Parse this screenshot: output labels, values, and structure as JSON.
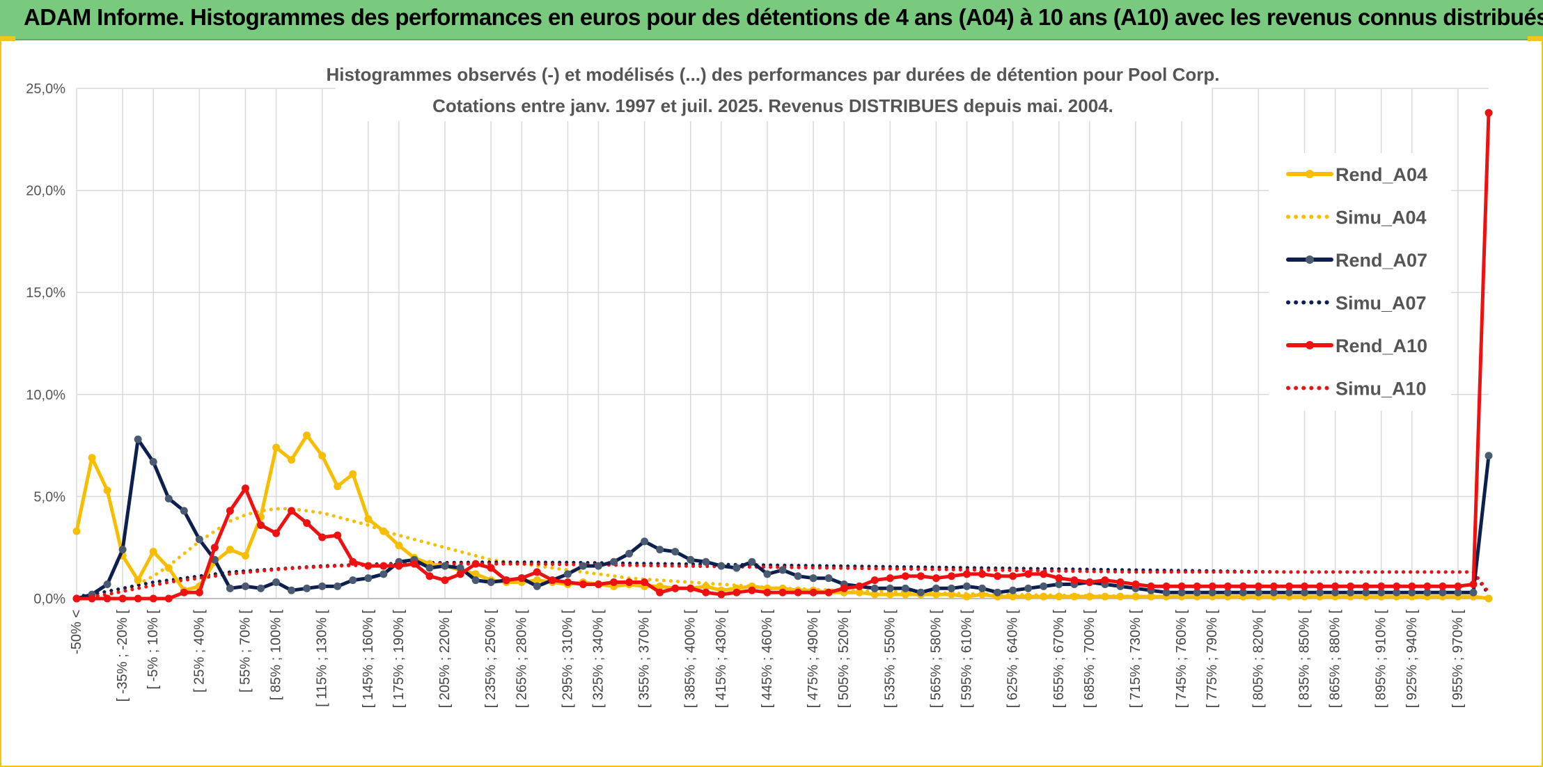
{
  "banner": {
    "title": "ADAM Informe. Histogrammes des performances en euros pour des détentions de 4 ans (A04) à 10 ans (A10) avec les revenus connus distribués"
  },
  "colors": {
    "banner_bg": "#79c97e",
    "accent": "#f0c419",
    "A04": "#f7be00",
    "A07": "#0d1f4f",
    "A07_marker": "#4a5a70",
    "A10": "#ee1111",
    "grid": "#d9d9d9"
  },
  "chart_data": {
    "type": "line",
    "title_lines": [
      "Histogrammes observés (-) et modélisés (...) des performances par durées de détention pour Pool Corp.",
      "Cotations entre janv. 1997 et juil. 2025. Revenus DISTRIBUES depuis mai. 2004."
    ],
    "y_ticks": [
      "0,0%",
      "5,0%",
      "10,0%",
      "15,0%",
      "20,0%",
      "25,0%"
    ],
    "ylim": [
      0,
      25
    ],
    "grid": true,
    "legend_position": "right",
    "x_labels": [
      "-50% <",
      "[ -35% ; -20% [",
      "[ -5% ; 10% [",
      "[ 25% ; 40% [",
      "[ 55% ; 70% [",
      "[ 85% ; 100% [",
      "[ 115% ; 130% [",
      "[ 145% ; 160% [",
      "[ 175% ; 190% [",
      "[ 205% ; 220% [",
      "[ 235% ; 250% [",
      "[ 265% ; 280% [",
      "[ 295% ; 310% [",
      "[ 325% ; 340% [",
      "[ 355% ; 370% [",
      "[ 385% ; 400% [",
      "[ 415% ; 430% [",
      "[ 445% ; 460% [",
      "[ 475% ; 490% [",
      "[ 505% ; 520% [",
      "[ 535% ; 550% [",
      "[ 565% ; 580% [",
      "[ 595% ; 610% [",
      "[ 625% ; 640% [",
      "[ 655% ; 670% [",
      "[ 685% ; 700% [",
      "[ 715% ; 730% [",
      "[ 745% ; 760% [",
      "[ 775% ; 790% [",
      "[ 805% ; 820% [",
      "[ 835% ; 850% [",
      "[ 865% ; 880% [",
      "[ 895% ; 910% [",
      "[ 925% ; 940% [",
      "[ 955% ; 970% ["
    ],
    "series": [
      {
        "name": "Rend_A04",
        "style": "solid",
        "color": "#f7be00",
        "markers": true,
        "values": [
          3.3,
          6.9,
          5.3,
          2.1,
          0.9,
          2.3,
          1.5,
          0.4,
          0.6,
          1.8,
          2.4,
          2.1,
          4.0,
          7.4,
          6.8,
          8.0,
          7.0,
          5.5,
          6.1,
          3.9,
          3.3,
          2.6,
          2.0,
          1.7,
          1.6,
          1.4,
          1.2,
          0.9,
          0.8,
          0.8,
          0.9,
          0.8,
          0.7,
          0.8,
          0.7,
          0.6,
          0.7,
          0.6,
          0.6,
          0.5,
          0.5,
          0.6,
          0.4,
          0.5,
          0.6,
          0.5,
          0.5,
          0.4,
          0.4,
          0.3,
          0.3,
          0.3,
          0.2,
          0.2,
          0.2,
          0.2,
          0.2,
          0.2,
          0.1,
          0.2,
          0.1,
          0.1,
          0.1,
          0.1,
          0.1,
          0.1,
          0.1,
          0.1,
          0.1,
          0.1,
          0.1,
          0.1,
          0.1,
          0.1,
          0.1,
          0.1,
          0.1,
          0.1,
          0.1,
          0.1,
          0.1,
          0.1,
          0.1,
          0.1,
          0.1,
          0.1,
          0.1,
          0.1,
          0.1,
          0.1,
          0.1,
          0.1,
          0.0
        ]
      },
      {
        "name": "Simu_A04",
        "style": "dotted",
        "color": "#f7be00",
        "markers": false,
        "values": [
          0.05,
          0.1,
          0.2,
          0.4,
          0.7,
          1.1,
          1.6,
          2.2,
          2.8,
          3.3,
          3.8,
          4.1,
          4.3,
          4.4,
          4.4,
          4.3,
          4.2,
          4.0,
          3.8,
          3.6,
          3.3,
          3.1,
          2.9,
          2.7,
          2.5,
          2.3,
          2.1,
          1.9,
          1.8,
          1.7,
          1.6,
          1.5,
          1.4,
          1.3,
          1.2,
          1.1,
          1.0,
          0.95,
          0.9,
          0.85,
          0.8,
          0.75,
          0.7,
          0.65,
          0.6,
          0.55,
          0.5,
          0.48,
          0.45,
          0.42,
          0.4,
          0.38,
          0.36,
          0.34,
          0.32,
          0.3,
          0.28,
          0.26,
          0.24,
          0.22,
          0.2,
          0.19,
          0.18,
          0.17,
          0.16,
          0.15,
          0.14,
          0.13,
          0.12,
          0.11,
          0.1,
          0.09,
          0.08,
          0.07,
          0.06,
          0.05,
          0.05,
          0.05,
          0.05,
          0.05,
          0.05,
          0.05,
          0.05,
          0.05,
          0.05,
          0.05,
          0.05,
          0.05,
          0.05,
          0.05,
          0.05,
          0.05,
          0.05
        ]
      },
      {
        "name": "Rend_A07",
        "style": "solid",
        "color": "#0d1f4f",
        "markers": true,
        "values": [
          0.0,
          0.2,
          0.7,
          2.4,
          7.8,
          6.7,
          4.9,
          4.3,
          2.9,
          1.9,
          0.5,
          0.6,
          0.5,
          0.8,
          0.4,
          0.5,
          0.6,
          0.6,
          0.9,
          1.0,
          1.2,
          1.8,
          1.9,
          1.5,
          1.6,
          1.5,
          0.9,
          0.8,
          0.9,
          1.0,
          0.6,
          0.9,
          1.2,
          1.6,
          1.6,
          1.8,
          2.2,
          2.8,
          2.4,
          2.3,
          1.9,
          1.8,
          1.6,
          1.5,
          1.8,
          1.2,
          1.4,
          1.1,
          1.0,
          1.0,
          0.7,
          0.6,
          0.5,
          0.5,
          0.5,
          0.3,
          0.5,
          0.5,
          0.6,
          0.5,
          0.3,
          0.4,
          0.5,
          0.6,
          0.7,
          0.7,
          0.8,
          0.7,
          0.6,
          0.5,
          0.4,
          0.3,
          0.3,
          0.3,
          0.3,
          0.3,
          0.3,
          0.3,
          0.3,
          0.3,
          0.3,
          0.3,
          0.3,
          0.3,
          0.3,
          0.3,
          0.3,
          0.3,
          0.3,
          0.3,
          0.3,
          0.3,
          7.0
        ]
      },
      {
        "name": "Simu_A07",
        "style": "dotted",
        "color": "#0d1f4f",
        "markers": false,
        "values": [
          0.1,
          0.2,
          0.35,
          0.5,
          0.65,
          0.8,
          0.9,
          1.0,
          1.1,
          1.2,
          1.3,
          1.35,
          1.4,
          1.45,
          1.5,
          1.55,
          1.6,
          1.62,
          1.65,
          1.68,
          1.7,
          1.72,
          1.74,
          1.75,
          1.76,
          1.77,
          1.78,
          1.78,
          1.78,
          1.78,
          1.78,
          1.77,
          1.77,
          1.76,
          1.75,
          1.74,
          1.73,
          1.72,
          1.71,
          1.7,
          1.69,
          1.68,
          1.67,
          1.66,
          1.65,
          1.64,
          1.63,
          1.62,
          1.61,
          1.6,
          1.59,
          1.58,
          1.57,
          1.56,
          1.55,
          1.54,
          1.53,
          1.52,
          1.51,
          1.5,
          1.49,
          1.48,
          1.47,
          1.46,
          1.45,
          1.44,
          1.43,
          1.42,
          1.41,
          1.4,
          1.39,
          1.38,
          1.37,
          1.36,
          1.35,
          1.34,
          1.33,
          1.32,
          1.31,
          1.3,
          1.3,
          1.3,
          1.3,
          1.3,
          1.3,
          1.3,
          1.3,
          1.3,
          1.3,
          1.3,
          1.3,
          1.3,
          0.2
        ]
      },
      {
        "name": "Rend_A10",
        "style": "solid",
        "color": "#ee1111",
        "markers": true,
        "values": [
          0.0,
          0.0,
          0.0,
          0.0,
          0.0,
          0.0,
          0.0,
          0.3,
          0.3,
          2.5,
          4.3,
          5.4,
          3.6,
          3.2,
          4.3,
          3.7,
          3.0,
          3.1,
          1.8,
          1.6,
          1.6,
          1.6,
          1.7,
          1.1,
          0.9,
          1.2,
          1.7,
          1.5,
          0.9,
          1.0,
          1.3,
          0.9,
          0.8,
          0.7,
          0.7,
          0.8,
          0.8,
          0.8,
          0.3,
          0.5,
          0.5,
          0.3,
          0.2,
          0.3,
          0.4,
          0.3,
          0.3,
          0.3,
          0.3,
          0.3,
          0.5,
          0.6,
          0.9,
          1.0,
          1.1,
          1.1,
          1.0,
          1.1,
          1.2,
          1.2,
          1.1,
          1.1,
          1.2,
          1.2,
          1.0,
          0.9,
          0.8,
          0.9,
          0.8,
          0.7,
          0.6,
          0.6,
          0.6,
          0.6,
          0.6,
          0.6,
          0.6,
          0.6,
          0.6,
          0.6,
          0.6,
          0.6,
          0.6,
          0.6,
          0.6,
          0.6,
          0.6,
          0.6,
          0.6,
          0.6,
          0.6,
          0.7,
          23.8
        ]
      },
      {
        "name": "Simu_A10",
        "style": "dotted",
        "color": "#ee1111",
        "markers": false,
        "values": [
          0.05,
          0.1,
          0.2,
          0.35,
          0.5,
          0.65,
          0.8,
          0.9,
          1.0,
          1.1,
          1.2,
          1.28,
          1.35,
          1.42,
          1.48,
          1.52,
          1.56,
          1.6,
          1.62,
          1.64,
          1.66,
          1.68,
          1.69,
          1.7,
          1.7,
          1.7,
          1.7,
          1.7,
          1.7,
          1.7,
          1.69,
          1.68,
          1.67,
          1.66,
          1.65,
          1.64,
          1.63,
          1.62,
          1.61,
          1.6,
          1.59,
          1.58,
          1.57,
          1.56,
          1.55,
          1.54,
          1.53,
          1.52,
          1.51,
          1.5,
          1.49,
          1.48,
          1.47,
          1.46,
          1.45,
          1.44,
          1.43,
          1.42,
          1.41,
          1.4,
          1.39,
          1.38,
          1.37,
          1.36,
          1.35,
          1.34,
          1.33,
          1.32,
          1.31,
          1.3,
          1.3,
          1.3,
          1.3,
          1.3,
          1.3,
          1.3,
          1.3,
          1.3,
          1.3,
          1.3,
          1.3,
          1.3,
          1.3,
          1.3,
          1.3,
          1.3,
          1.3,
          1.3,
          1.3,
          1.3,
          1.3,
          1.3,
          0.3
        ]
      }
    ]
  }
}
